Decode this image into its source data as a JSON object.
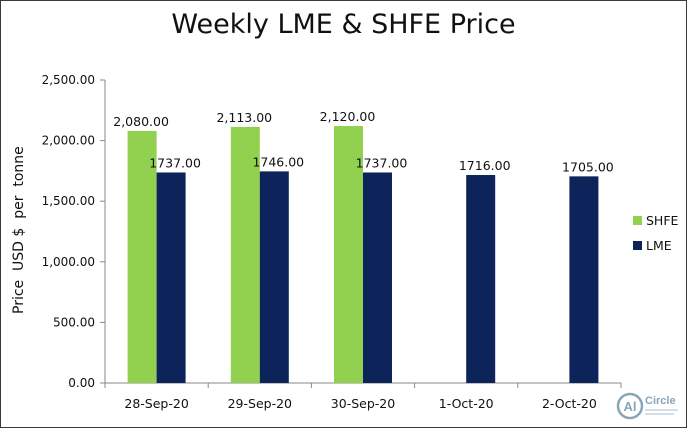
{
  "chart_data": {
    "type": "bar",
    "title": "Weekly LME & SHFE Price",
    "xlabel": "",
    "ylabel": "Price  USD $  per  tonne",
    "ylim": [
      0,
      2500
    ],
    "yticks": [
      0,
      500,
      1000,
      1500,
      2000,
      2500
    ],
    "ytick_labels": [
      "0.00",
      "500.00",
      "1,000.00",
      "1,500.00",
      "2,000.00",
      "2,500.00"
    ],
    "categories": [
      "28-Sep-20",
      "29-Sep-20",
      "30-Sep-20",
      "1-Oct-20",
      "2-Oct-20"
    ],
    "series": [
      {
        "name": "SHFE",
        "color": "#92d050",
        "values": [
          2080,
          2113,
          2120,
          null,
          null
        ],
        "labels": [
          "2,080.00",
          "2,113.00",
          "2,120.00",
          null,
          null
        ]
      },
      {
        "name": "LME",
        "color": "#0c2459",
        "values": [
          1737,
          1746,
          1737,
          1716,
          1705
        ],
        "labels": [
          "1737.00",
          "1746.00",
          "1737.00",
          "1716.00",
          "1705.00"
        ]
      }
    ],
    "grid": false,
    "legend_position": "right"
  },
  "logo": {
    "text": "Circle",
    "badge": "Al",
    "color": "#8aa4b8"
  }
}
